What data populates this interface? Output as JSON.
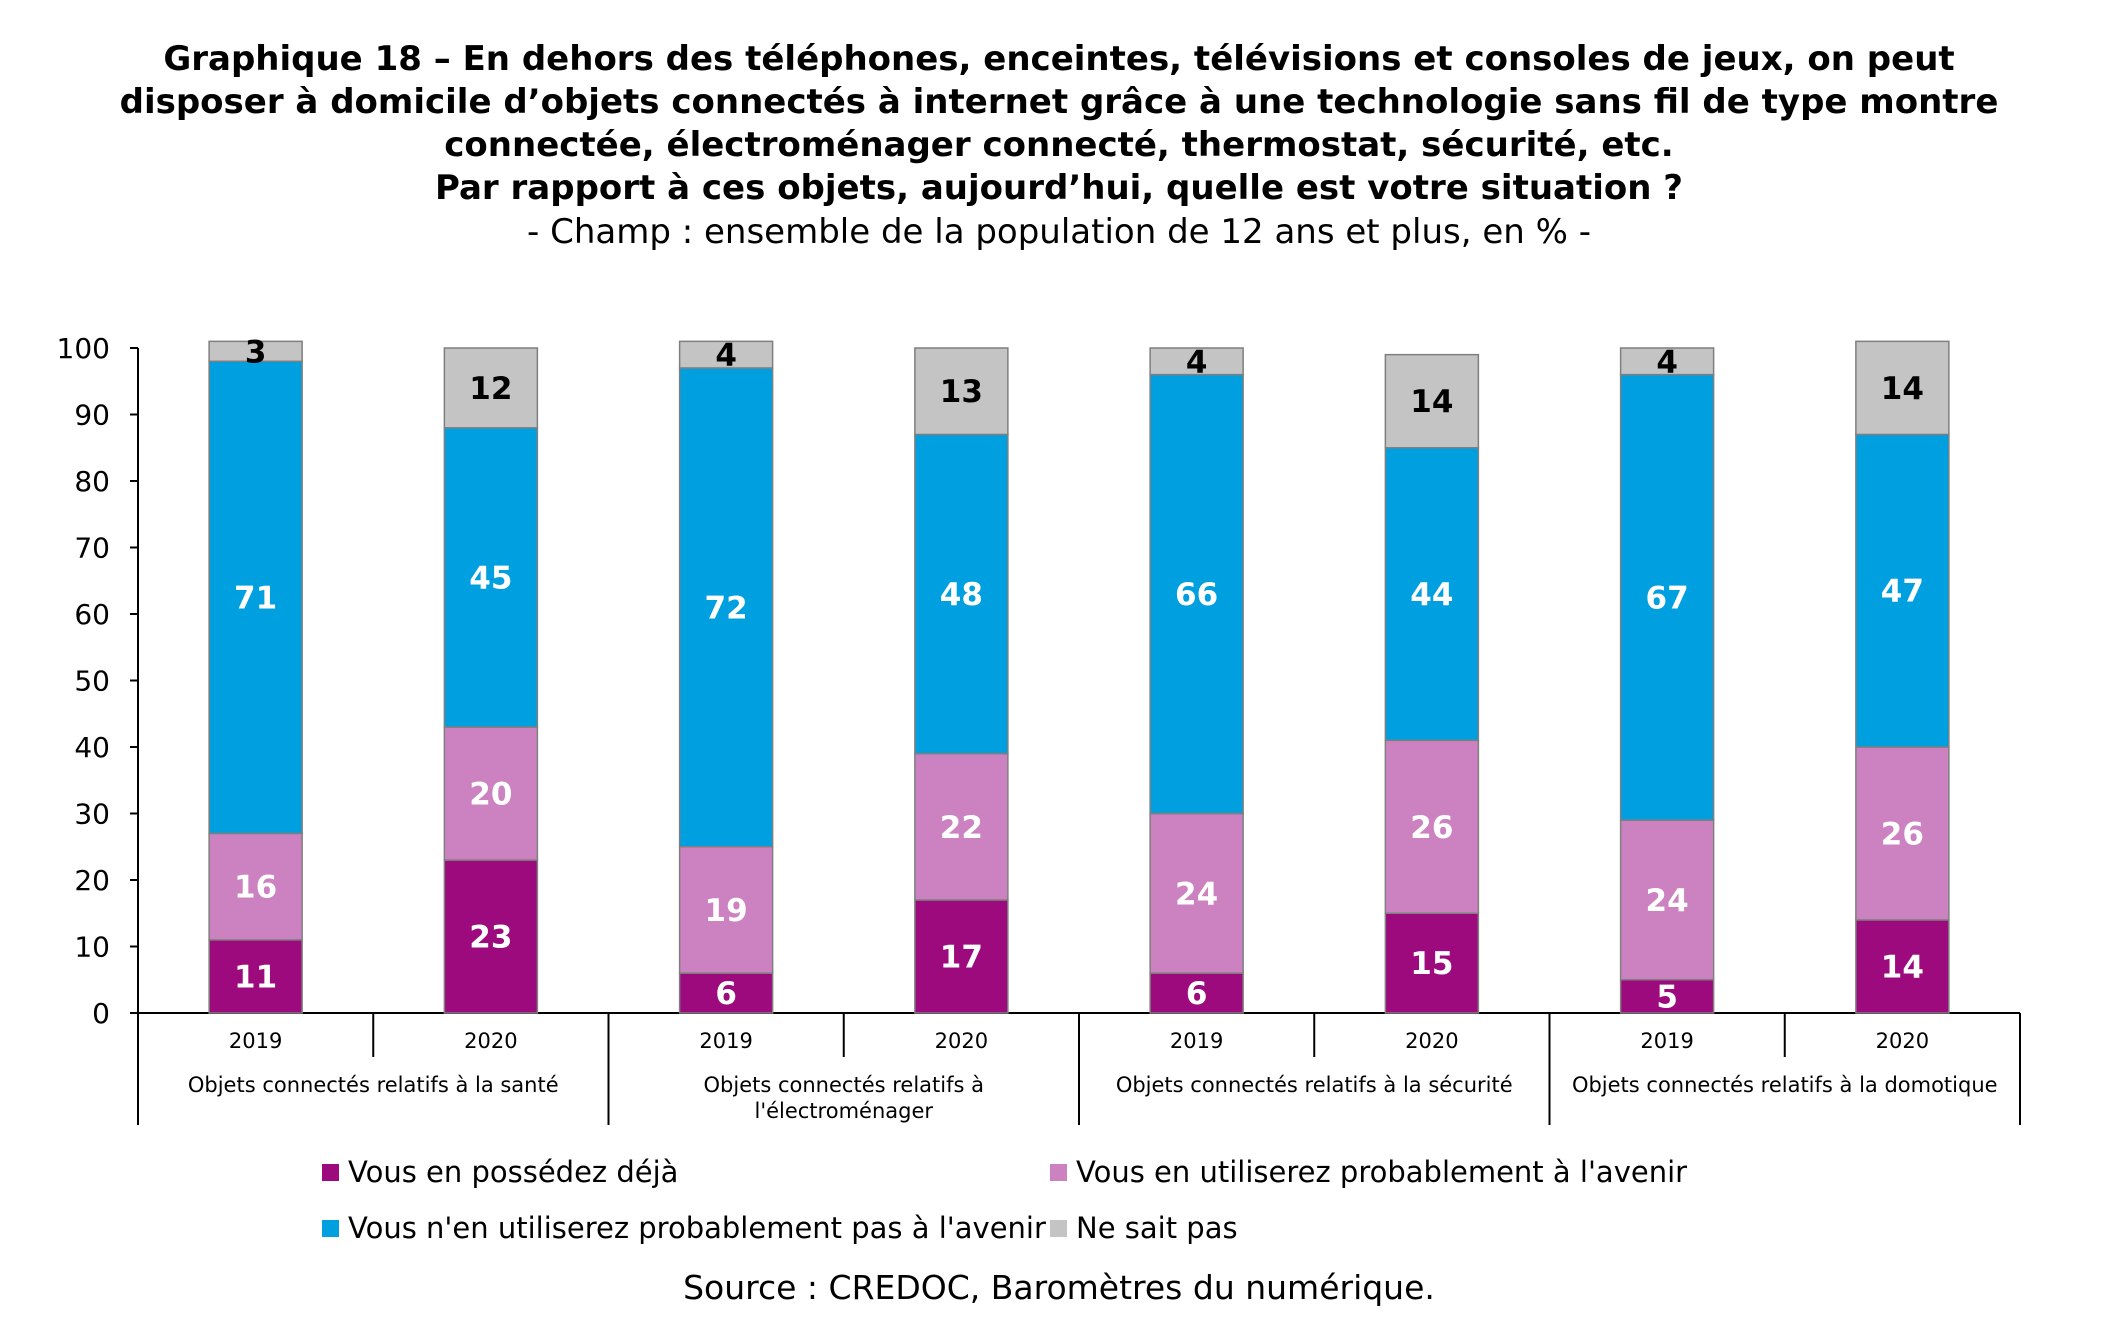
{
  "title_lines": [
    "Graphique 18 – En dehors des téléphones, enceintes, télévisions et consoles de jeux, on peut",
    "disposer à domicile d’objets connectés à internet grâce à une technologie sans fil de type montre",
    "connectée, électroménager connecté, thermostat, sécurité, etc.",
    "Par rapport à ces objets, aujourd’hui, quelle est votre situation ?"
  ],
  "subtitle": "- Champ : ensemble de la population de 12 ans et plus, en % -",
  "source": "Source : CREDOC, Baromètres du numérique.",
  "colors": {
    "possede": "#9c0a7d",
    "utilisera": "#cc82c0",
    "nutilisera_pas": "#009fe0",
    "ne_sait_pas": "#c4c4c4",
    "border": "#7f7f7f"
  },
  "chart_data": {
    "type": "bar",
    "stacked": true,
    "ylim": [
      0,
      100
    ],
    "yticks": [
      "0",
      "10",
      "20",
      "30",
      "40",
      "50",
      "60",
      "70",
      "80",
      "90",
      "100"
    ],
    "groups": [
      {
        "label_lines": [
          "Objets connectés relatifs à la santé"
        ],
        "years": [
          "2019",
          "2020"
        ]
      },
      {
        "label_lines": [
          "Objets connectés relatifs à",
          "l'électroménager"
        ],
        "years": [
          "2019",
          "2020"
        ]
      },
      {
        "label_lines": [
          "Objets connectés relatifs à la sécurité"
        ],
        "years": [
          "2019",
          "2020"
        ]
      },
      {
        "label_lines": [
          "Objets connectés relatifs à la domotique"
        ],
        "years": [
          "2019",
          "2020"
        ]
      }
    ],
    "series": [
      {
        "name": "Vous en possédez déjà",
        "color_key": "possede",
        "label_color": "#ffffff",
        "values": [
          11,
          23,
          6,
          17,
          6,
          15,
          5,
          14
        ]
      },
      {
        "name": "Vous en utiliserez probablement à l'avenir",
        "color_key": "utilisera",
        "label_color": "#ffffff",
        "values": [
          16,
          20,
          19,
          22,
          24,
          26,
          24,
          26
        ]
      },
      {
        "name": "Vous n'en utiliserez probablement pas à l'avenir",
        "color_key": "nutilisera_pas",
        "label_color": "#ffffff",
        "values": [
          71,
          45,
          72,
          48,
          66,
          44,
          67,
          47
        ]
      },
      {
        "name": "Ne sait pas",
        "color_key": "ne_sait_pas",
        "label_color": "#000000",
        "values": [
          3,
          12,
          4,
          13,
          4,
          14,
          4,
          14
        ]
      }
    ],
    "legend_placement": "bottom"
  }
}
